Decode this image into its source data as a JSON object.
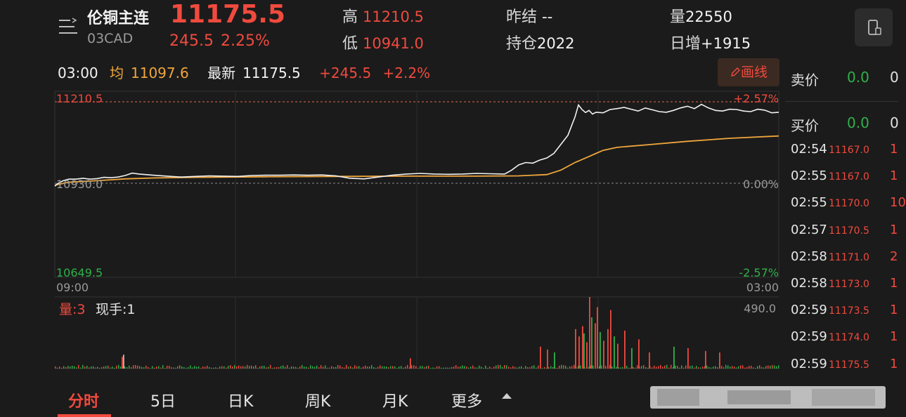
{
  "header": {
    "title": "伦铜主连",
    "code": "03CAD",
    "price": "11175.5",
    "change": "245.5",
    "change_pct": "2.25%",
    "high_label": "高",
    "high": "11210.5",
    "low_label": "低",
    "low": "10941.0",
    "prev_settle_label": "昨结",
    "prev_settle": "--",
    "open_interest_label": "持仓",
    "open_interest": "2022",
    "volume_label": "量",
    "volume": "22550",
    "oi_change_label": "日增",
    "oi_change": "+1915"
  },
  "info_row": {
    "time": "03:00",
    "avg_label": "均",
    "avg": "11097.6",
    "last_label": "最新",
    "last": "11175.5",
    "change": "+245.5",
    "change_pct": "+2.2%",
    "draw_button": "画线"
  },
  "chart_labels": {
    "y_top": "11210.5",
    "y_mid": "10930.0",
    "y_bottom": "10649.5",
    "pct_top": "+2.57%",
    "pct_mid": "0.00%",
    "pct_bottom": "-2.57%",
    "x_start": "09:00",
    "x_end": "03:00",
    "vol_label": "量:3",
    "hand_label": "现手:1",
    "vol_max": "490.0"
  },
  "chart_data": {
    "type": "line",
    "series": [
      {
        "color": "#f2f2f2",
        "x": [
          0,
          4,
          8,
          12,
          20,
          30,
          40,
          50,
          60,
          70,
          80,
          90,
          100,
          110,
          120,
          140,
          160,
          180,
          200,
          220,
          240,
          260,
          280,
          300,
          320,
          340,
          360,
          380,
          400,
          420,
          440,
          460,
          480,
          500,
          520,
          540,
          560,
          580,
          600,
          620,
          640,
          650,
          660,
          670,
          680,
          690,
          700,
          710,
          720,
          730,
          735,
          740,
          745,
          750,
          755,
          760,
          765,
          770,
          780,
          790,
          800,
          810,
          820,
          830,
          840,
          850,
          860,
          870,
          880,
          890,
          900,
          910,
          920,
          930,
          940,
          950,
          960,
          970,
          980,
          990,
          1000,
          1010,
          1020,
          1030
        ],
        "values": [
          10932,
          10940,
          10945,
          10950,
          10955,
          10955,
          10958,
          10955,
          10957,
          10961,
          10960,
          10962,
          10967,
          10975,
          10972,
          10968,
          10965,
          10962,
          10964,
          10966,
          10965,
          10964,
          10967,
          10968,
          10968,
          10969,
          10968,
          10969,
          10966,
          10958,
          10956,
          10962,
          10968,
          10972,
          10974,
          10972,
          10971,
          10972,
          10974,
          10973,
          10972,
          10985,
          11002,
          11010,
          11008,
          11018,
          11025,
          11040,
          11070,
          11100,
          11130,
          11160,
          11200,
          11185,
          11175,
          11182,
          11170,
          11176,
          11174,
          11185,
          11188,
          11192,
          11186,
          11180,
          11190,
          11184,
          11178,
          11176,
          11182,
          11190,
          11196,
          11188,
          11202,
          11190,
          11182,
          11180,
          11186,
          11185,
          11180,
          11178,
          11186,
          11183,
          11174,
          11176
        ]
      },
      {
        "color": "#f0a63c",
        "x": [
          0,
          20,
          60,
          100,
          140,
          200,
          300,
          400,
          500,
          600,
          660,
          700,
          720,
          740,
          760,
          770,
          780,
          800,
          840,
          900,
          960,
          1030
        ],
        "values": [
          10935,
          10945,
          10950,
          10956,
          10959,
          10961,
          10963,
          10964,
          10965,
          10965,
          10966,
          10970,
          10985,
          11010,
          11030,
          11040,
          11050,
          11060,
          11068,
          11080,
          11090,
          11097.6
        ]
      }
    ],
    "ylim": [
      10649.5,
      11210.5
    ],
    "reference_line": 10930.0,
    "volume": {
      "max": 490.0,
      "spikes": [
        {
          "x": 95,
          "v": 80,
          "c": "red"
        },
        {
          "x": 97,
          "v": 95,
          "c": "grey"
        },
        {
          "x": 505,
          "v": 70,
          "c": "red"
        },
        {
          "x": 690,
          "v": 150,
          "c": "red"
        },
        {
          "x": 700,
          "v": 130,
          "c": "red"
        },
        {
          "x": 710,
          "v": 110,
          "c": "green"
        },
        {
          "x": 740,
          "v": 270,
          "c": "red"
        },
        {
          "x": 745,
          "v": 220,
          "c": "red"
        },
        {
          "x": 750,
          "v": 290,
          "c": "red"
        },
        {
          "x": 752,
          "v": 240,
          "c": "green"
        },
        {
          "x": 756,
          "v": 180,
          "c": "red"
        },
        {
          "x": 760,
          "v": 490,
          "c": "red"
        },
        {
          "x": 763,
          "v": 350,
          "c": "green"
        },
        {
          "x": 768,
          "v": 310,
          "c": "red"
        },
        {
          "x": 771,
          "v": 420,
          "c": "red"
        },
        {
          "x": 775,
          "v": 250,
          "c": "green"
        },
        {
          "x": 780,
          "v": 190,
          "c": "red"
        },
        {
          "x": 786,
          "v": 270,
          "c": "red"
        },
        {
          "x": 790,
          "v": 400,
          "c": "red"
        },
        {
          "x": 795,
          "v": 220,
          "c": "green"
        },
        {
          "x": 800,
          "v": 170,
          "c": "red"
        },
        {
          "x": 810,
          "v": 260,
          "c": "red"
        },
        {
          "x": 820,
          "v": 140,
          "c": "green"
        },
        {
          "x": 830,
          "v": 200,
          "c": "red"
        },
        {
          "x": 845,
          "v": 110,
          "c": "red"
        },
        {
          "x": 880,
          "v": 150,
          "c": "green"
        },
        {
          "x": 900,
          "v": 140,
          "c": "red"
        },
        {
          "x": 925,
          "v": 120,
          "c": "red"
        },
        {
          "x": 945,
          "v": 110,
          "c": "red"
        }
      ]
    }
  },
  "right_panel": {
    "sell_label": "卖价",
    "sell_value": "0.0",
    "sell_tail": "0",
    "buy_label": "买价",
    "buy_value": "0.0",
    "buy_tail": "0",
    "ticks": [
      {
        "time": "02:54",
        "price": "11167.0",
        "qty": "1"
      },
      {
        "time": "02:55",
        "price": "11167.0",
        "qty": "1"
      },
      {
        "time": "02:55",
        "price": "11170.0",
        "qty": "10"
      },
      {
        "time": "02:57",
        "price": "11170.5",
        "qty": "1"
      },
      {
        "time": "02:58",
        "price": "11171.0",
        "qty": "2"
      },
      {
        "time": "02:58",
        "price": "11173.0",
        "qty": "1"
      },
      {
        "time": "02:59",
        "price": "11173.5",
        "qty": "1"
      },
      {
        "time": "02:59",
        "price": "11174.0",
        "qty": "1"
      },
      {
        "time": "02:59",
        "price": "11175.5",
        "qty": "1"
      }
    ]
  },
  "tabs": [
    "分时",
    "5日",
    "日K",
    "周K",
    "月K",
    "更多"
  ]
}
